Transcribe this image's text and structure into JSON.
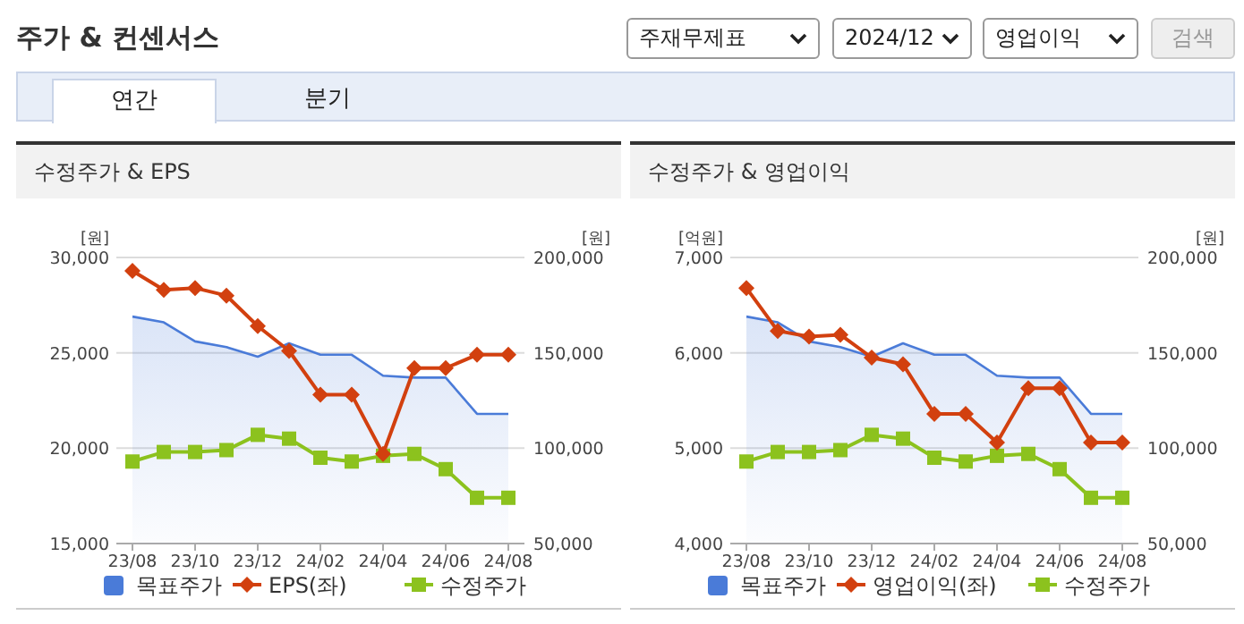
{
  "chart_data": [
    {
      "type": "other",
      "title": "주가 & 컨센서스",
      "annotations": [
        "주재무제표",
        "2024/12",
        "영업이익",
        "검색",
        "연간",
        "분기"
      ]
    },
    {
      "type": "line",
      "title": "수정주가 & EPS",
      "ylabel": "[원]",
      "y2label": "[원]",
      "legend": "bottom",
      "grid": "y",
      "categories": [
        "23/08",
        null,
        "23/10",
        null,
        "23/12",
        null,
        "24/02",
        null,
        "24/04",
        null,
        "24/06",
        null,
        "24/08"
      ],
      "ylim": [
        15000,
        30000
      ],
      "yticks": [
        {
          "value": 15000,
          "label": "15,000"
        },
        {
          "value": 20000,
          "label": "20,000"
        },
        {
          "value": 25000,
          "label": "25,000"
        },
        {
          "value": 30000,
          "label": "30,000"
        }
      ],
      "y2lim": [
        50000,
        200000
      ],
      "y2ticks": [
        {
          "value": 50000,
          "label": "50,000"
        },
        {
          "value": 100000,
          "label": "100,000"
        },
        {
          "value": 150000,
          "label": "150,000"
        },
        {
          "value": 200000,
          "label": "200,000"
        }
      ],
      "series": [
        {
          "name": "목표주가",
          "type": "area",
          "axis": "y2",
          "color": "#4a7bd8",
          "marker": "none",
          "values": [
            169000,
            166000,
            156000,
            153000,
            148000,
            155000,
            149000,
            149000,
            138000,
            137000,
            137000,
            118000,
            118000
          ]
        },
        {
          "name": "EPS(좌)",
          "type": "line",
          "color": "#d2400f",
          "marker": "diamond",
          "values": [
            29300,
            28300,
            28400,
            28000,
            26400,
            25100,
            22800,
            22800,
            19700,
            24200,
            24200,
            24900,
            24900
          ]
        },
        {
          "name": "수정주가",
          "type": "line",
          "axis": "y2",
          "color": "#8cc21e",
          "marker": "square",
          "values": [
            93000,
            98000,
            98000,
            99000,
            107000,
            105000,
            95000,
            93000,
            96000,
            97000,
            89000,
            74000,
            74000
          ]
        }
      ]
    },
    {
      "type": "line",
      "title": "수정주가 & 영업이익",
      "ylabel": "[억원]",
      "y2label": "[원]",
      "legend": "bottom",
      "grid": "y",
      "categories": [
        "23/08",
        null,
        "23/10",
        null,
        "23/12",
        null,
        "24/02",
        null,
        "24/04",
        null,
        "24/06",
        null,
        "24/08"
      ],
      "ylim": [
        4000,
        7000
      ],
      "yticks": [
        {
          "value": 4000,
          "label": "4,000"
        },
        {
          "value": 5000,
          "label": "5,000"
        },
        {
          "value": 6000,
          "label": "6,000"
        },
        {
          "value": 7000,
          "label": "7,000"
        }
      ],
      "y2lim": [
        50000,
        200000
      ],
      "y2ticks": [
        {
          "value": 50000,
          "label": "50,000"
        },
        {
          "value": 100000,
          "label": "100,000"
        },
        {
          "value": 150000,
          "label": "150,000"
        },
        {
          "value": 200000,
          "label": "200,000"
        }
      ],
      "series": [
        {
          "name": "목표주가",
          "type": "area",
          "axis": "y2",
          "color": "#4a7bd8",
          "marker": "none",
          "values": [
            169000,
            166000,
            156000,
            153000,
            148000,
            155000,
            149000,
            149000,
            138000,
            137000,
            137000,
            118000,
            118000
          ]
        },
        {
          "name": "영업이익(좌)",
          "type": "line",
          "color": "#d2400f",
          "marker": "diamond",
          "values": [
            6680,
            6230,
            6170,
            6190,
            5950,
            5880,
            5360,
            5360,
            5060,
            5630,
            5630,
            5060,
            5060
          ]
        },
        {
          "name": "수정주가",
          "type": "line",
          "axis": "y2",
          "color": "#8cc21e",
          "marker": "square",
          "values": [
            93000,
            98000,
            98000,
            99000,
            107000,
            105000,
            95000,
            93000,
            96000,
            97000,
            89000,
            74000,
            74000
          ]
        }
      ]
    }
  ]
}
